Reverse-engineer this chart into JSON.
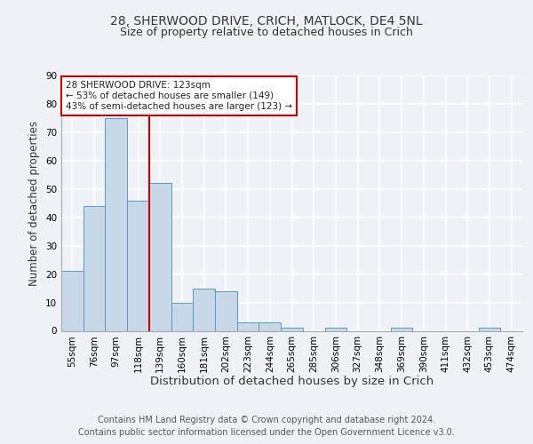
{
  "title1": "28, SHERWOOD DRIVE, CRICH, MATLOCK, DE4 5NL",
  "title2": "Size of property relative to detached houses in Crich",
  "xlabel": "Distribution of detached houses by size in Crich",
  "ylabel": "Number of detached properties",
  "footer": "Contains HM Land Registry data © Crown copyright and database right 2024.\nContains public sector information licensed under the Open Government Licence v3.0.",
  "bin_labels": [
    "55sqm",
    "76sqm",
    "97sqm",
    "118sqm",
    "139sqm",
    "160sqm",
    "181sqm",
    "202sqm",
    "223sqm",
    "244sqm",
    "265sqm",
    "285sqm",
    "306sqm",
    "327sqm",
    "348sqm",
    "369sqm",
    "390sqm",
    "411sqm",
    "432sqm",
    "453sqm",
    "474sqm"
  ],
  "bar_heights": [
    21,
    44,
    75,
    46,
    52,
    10,
    15,
    14,
    3,
    3,
    1,
    0,
    1,
    0,
    0,
    1,
    0,
    0,
    0,
    1,
    0
  ],
  "bar_color": "#c8d8e8",
  "bar_edge_color": "#5599cc",
  "property_line_x": 3.5,
  "property_line_color": "#cc0000",
  "annotation_text": "28 SHERWOOD DRIVE: 123sqm\n← 53% of detached houses are smaller (149)\n43% of semi-detached houses are larger (123) →",
  "annotation_box_color": "#ffffff",
  "annotation_box_edge": "#cc0000",
  "ylim": [
    0,
    90
  ],
  "yticks": [
    0,
    10,
    20,
    30,
    40,
    50,
    60,
    70,
    80,
    90
  ],
  "background_color": "#eef2f7",
  "plot_background": "#eef2f7",
  "grid_color": "#ffffff",
  "title1_fontsize": 10,
  "title2_fontsize": 9,
  "xlabel_fontsize": 9.5,
  "ylabel_fontsize": 8.5,
  "tick_fontsize": 7.5,
  "annotation_fontsize": 7.5,
  "footer_fontsize": 7.0
}
